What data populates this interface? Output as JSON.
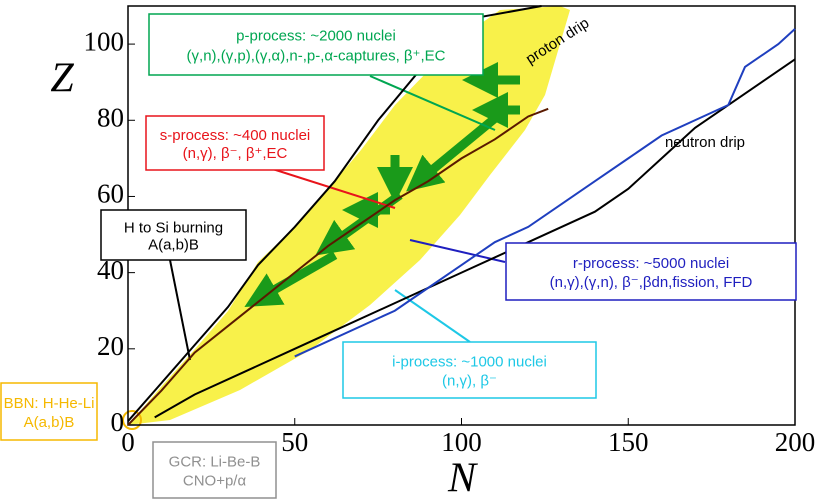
{
  "chart_data": {
    "type": "line",
    "xlabel": "N",
    "ylabel": "Z",
    "xlim": [
      0,
      200
    ],
    "ylim": [
      0,
      110
    ],
    "xticks": [
      0,
      50,
      100,
      150,
      200
    ],
    "yticks": [
      0,
      20,
      40,
      60,
      80,
      100
    ],
    "series": [
      {
        "name": "proton drip",
        "color": "#000000",
        "x": [
          0,
          10,
          20,
          30,
          39,
          50,
          62,
          75,
          94,
          105,
          124
        ],
        "y": [
          1,
          11,
          21,
          31,
          42,
          52,
          64,
          80,
          100,
          107,
          110
        ]
      },
      {
        "name": "neutron drip",
        "color": "#000000",
        "x": [
          8,
          20,
          35,
          50,
          60,
          80,
          100,
          115,
          125,
          140,
          150,
          160,
          170,
          180,
          190,
          200
        ],
        "y": [
          2,
          8,
          14,
          20,
          24,
          32,
          40,
          46,
          50,
          56,
          62,
          70,
          78,
          84,
          90,
          96
        ]
      },
      {
        "color": "#1f3fbf",
        "x": [
          50,
          80,
          90,
          100,
          110,
          120,
          130,
          140,
          150,
          160,
          170,
          180,
          185,
          195,
          200
        ],
        "y": [
          18,
          30,
          36,
          42,
          48,
          52,
          58,
          64,
          70,
          76,
          80,
          84,
          94,
          100,
          104
        ]
      },
      {
        "color": "#5a1a00",
        "x": [
          0,
          10,
          20,
          30,
          40,
          50,
          60,
          70,
          80,
          90,
          100,
          110,
          120,
          126
        ],
        "y": [
          0,
          9,
          19,
          26,
          33,
          40,
          47,
          53,
          59,
          64,
          70,
          75,
          81,
          83
        ]
      }
    ],
    "annotations": [
      {
        "color": "#00a651",
        "lines": [
          "p-process: ~2000 nuclei",
          "(γ,n),(γ,p),(γ,α),n-,p-,α-captures, β⁺,EC"
        ]
      },
      {
        "color": "#e8141b",
        "lines": [
          "s-process: ~400 nuclei",
          "(n,γ), β⁻, β⁺,EC"
        ]
      },
      {
        "color": "#000000",
        "lines": [
          "H to Si burning",
          "A(a,b)B"
        ]
      },
      {
        "color": "#1f1fbf",
        "lines": [
          "r-process: ~5000 nuclei",
          "(n,γ),(γ,n), β⁻,βdn,fission, FFD"
        ]
      },
      {
        "color": "#1ec8e6",
        "lines": [
          "i-process: ~1000 nuclei",
          "(n,γ), β⁻"
        ]
      },
      {
        "color": "#f5b800",
        "lines": [
          "BBN: H-He-Li",
          "A(a,b)B"
        ]
      },
      {
        "color": "#909090",
        "lines": [
          "GCR: Li-Be-B",
          "CNO+p/α"
        ]
      }
    ]
  }
}
